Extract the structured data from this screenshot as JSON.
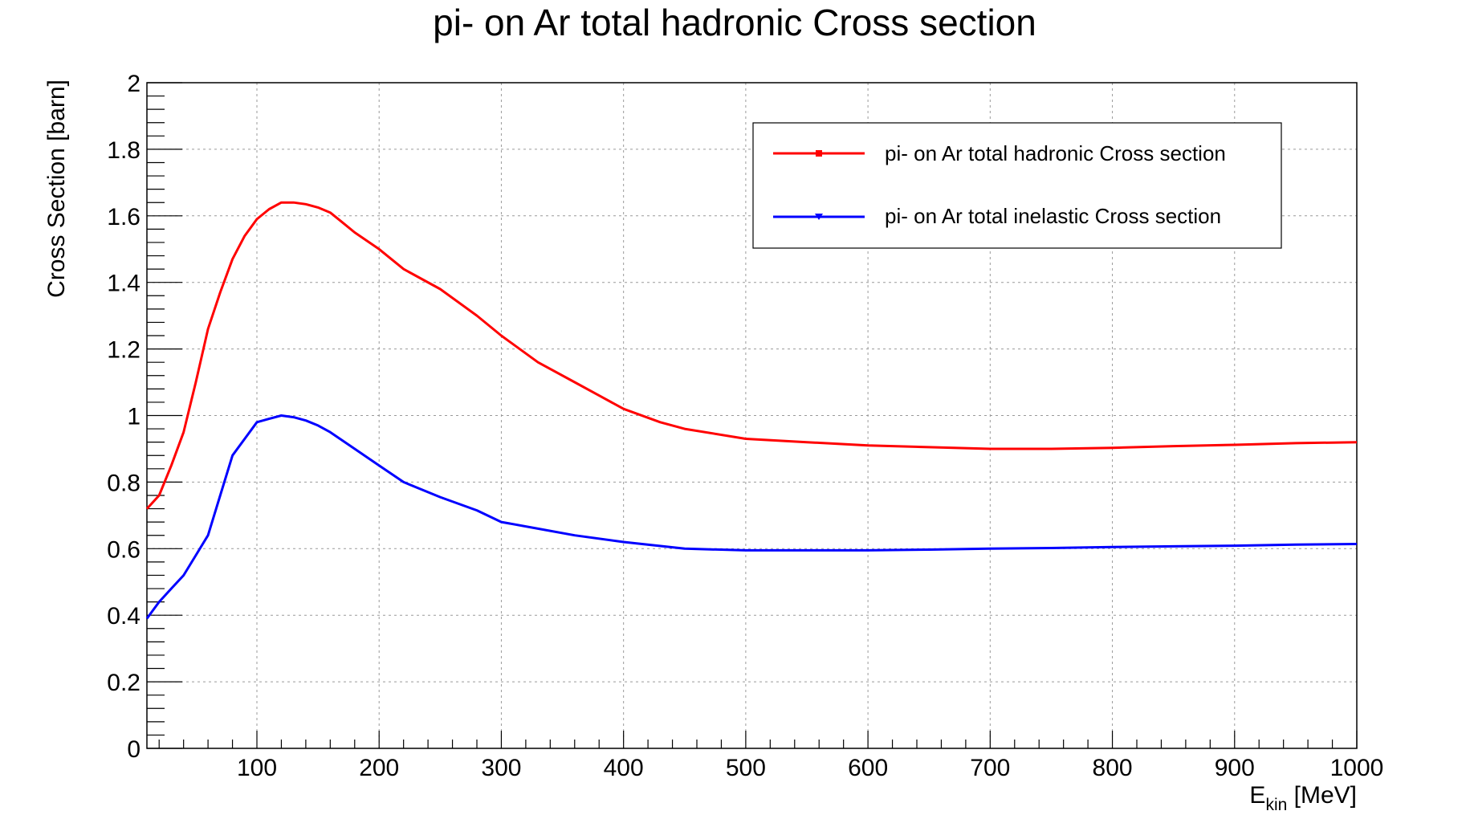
{
  "chart_data": {
    "type": "line",
    "title": "pi- on Ar total hadronic Cross section",
    "xlabel_main": "E",
    "xlabel_sub": "kin",
    "xlabel_unit": " [MeV]",
    "ylabel": "Cross Section [barn]",
    "xlim": [
      10,
      1000
    ],
    "ylim": [
      0,
      2
    ],
    "grid": true,
    "legend_position": "top-right",
    "x_ticks": [
      100,
      200,
      300,
      400,
      500,
      600,
      700,
      800,
      900,
      1000
    ],
    "y_ticks": [
      0,
      0.2,
      0.4,
      0.6,
      0.8,
      1,
      1.2,
      1.4,
      1.6,
      1.8,
      2
    ],
    "x_tick_labels": [
      "100",
      "200",
      "300",
      "400",
      "500",
      "600",
      "700",
      "800",
      "900",
      "1000"
    ],
    "y_tick_labels": [
      "0",
      "0.2",
      "0.4",
      "0.6",
      "0.8",
      "1",
      "1.2",
      "1.4",
      "1.6",
      "1.8",
      "2"
    ],
    "series": [
      {
        "name": "pi- on Ar total hadronic Cross section",
        "color": "#ff0000",
        "marker": "square",
        "x": [
          10,
          20,
          30,
          40,
          50,
          60,
          70,
          80,
          90,
          100,
          110,
          120,
          130,
          140,
          150,
          160,
          170,
          180,
          200,
          220,
          250,
          280,
          300,
          330,
          360,
          380,
          400,
          430,
          450,
          500,
          550,
          600,
          650,
          700,
          750,
          800,
          850,
          900,
          950,
          1000
        ],
        "y": [
          0.72,
          0.76,
          0.85,
          0.95,
          1.1,
          1.26,
          1.37,
          1.47,
          1.54,
          1.59,
          1.62,
          1.64,
          1.64,
          1.635,
          1.625,
          1.61,
          1.58,
          1.55,
          1.5,
          1.44,
          1.38,
          1.3,
          1.24,
          1.16,
          1.1,
          1.06,
          1.02,
          0.98,
          0.96,
          0.93,
          0.92,
          0.91,
          0.905,
          0.9,
          0.9,
          0.903,
          0.908,
          0.912,
          0.917,
          0.92
        ]
      },
      {
        "name": "pi- on Ar total inelastic Cross section",
        "color": "#0000ff",
        "marker": "triangle-down",
        "x": [
          10,
          20,
          30,
          40,
          50,
          60,
          70,
          80,
          90,
          100,
          110,
          120,
          130,
          140,
          150,
          160,
          180,
          200,
          220,
          250,
          280,
          300,
          330,
          360,
          400,
          450,
          500,
          550,
          600,
          650,
          700,
          750,
          800,
          850,
          900,
          950,
          1000
        ],
        "y": [
          0.39,
          0.44,
          0.48,
          0.52,
          0.58,
          0.64,
          0.76,
          0.88,
          0.93,
          0.98,
          0.99,
          1.0,
          0.995,
          0.985,
          0.97,
          0.95,
          0.9,
          0.85,
          0.8,
          0.755,
          0.715,
          0.68,
          0.66,
          0.64,
          0.62,
          0.6,
          0.595,
          0.595,
          0.595,
          0.597,
          0.6,
          0.602,
          0.605,
          0.607,
          0.609,
          0.612,
          0.614
        ]
      }
    ]
  }
}
